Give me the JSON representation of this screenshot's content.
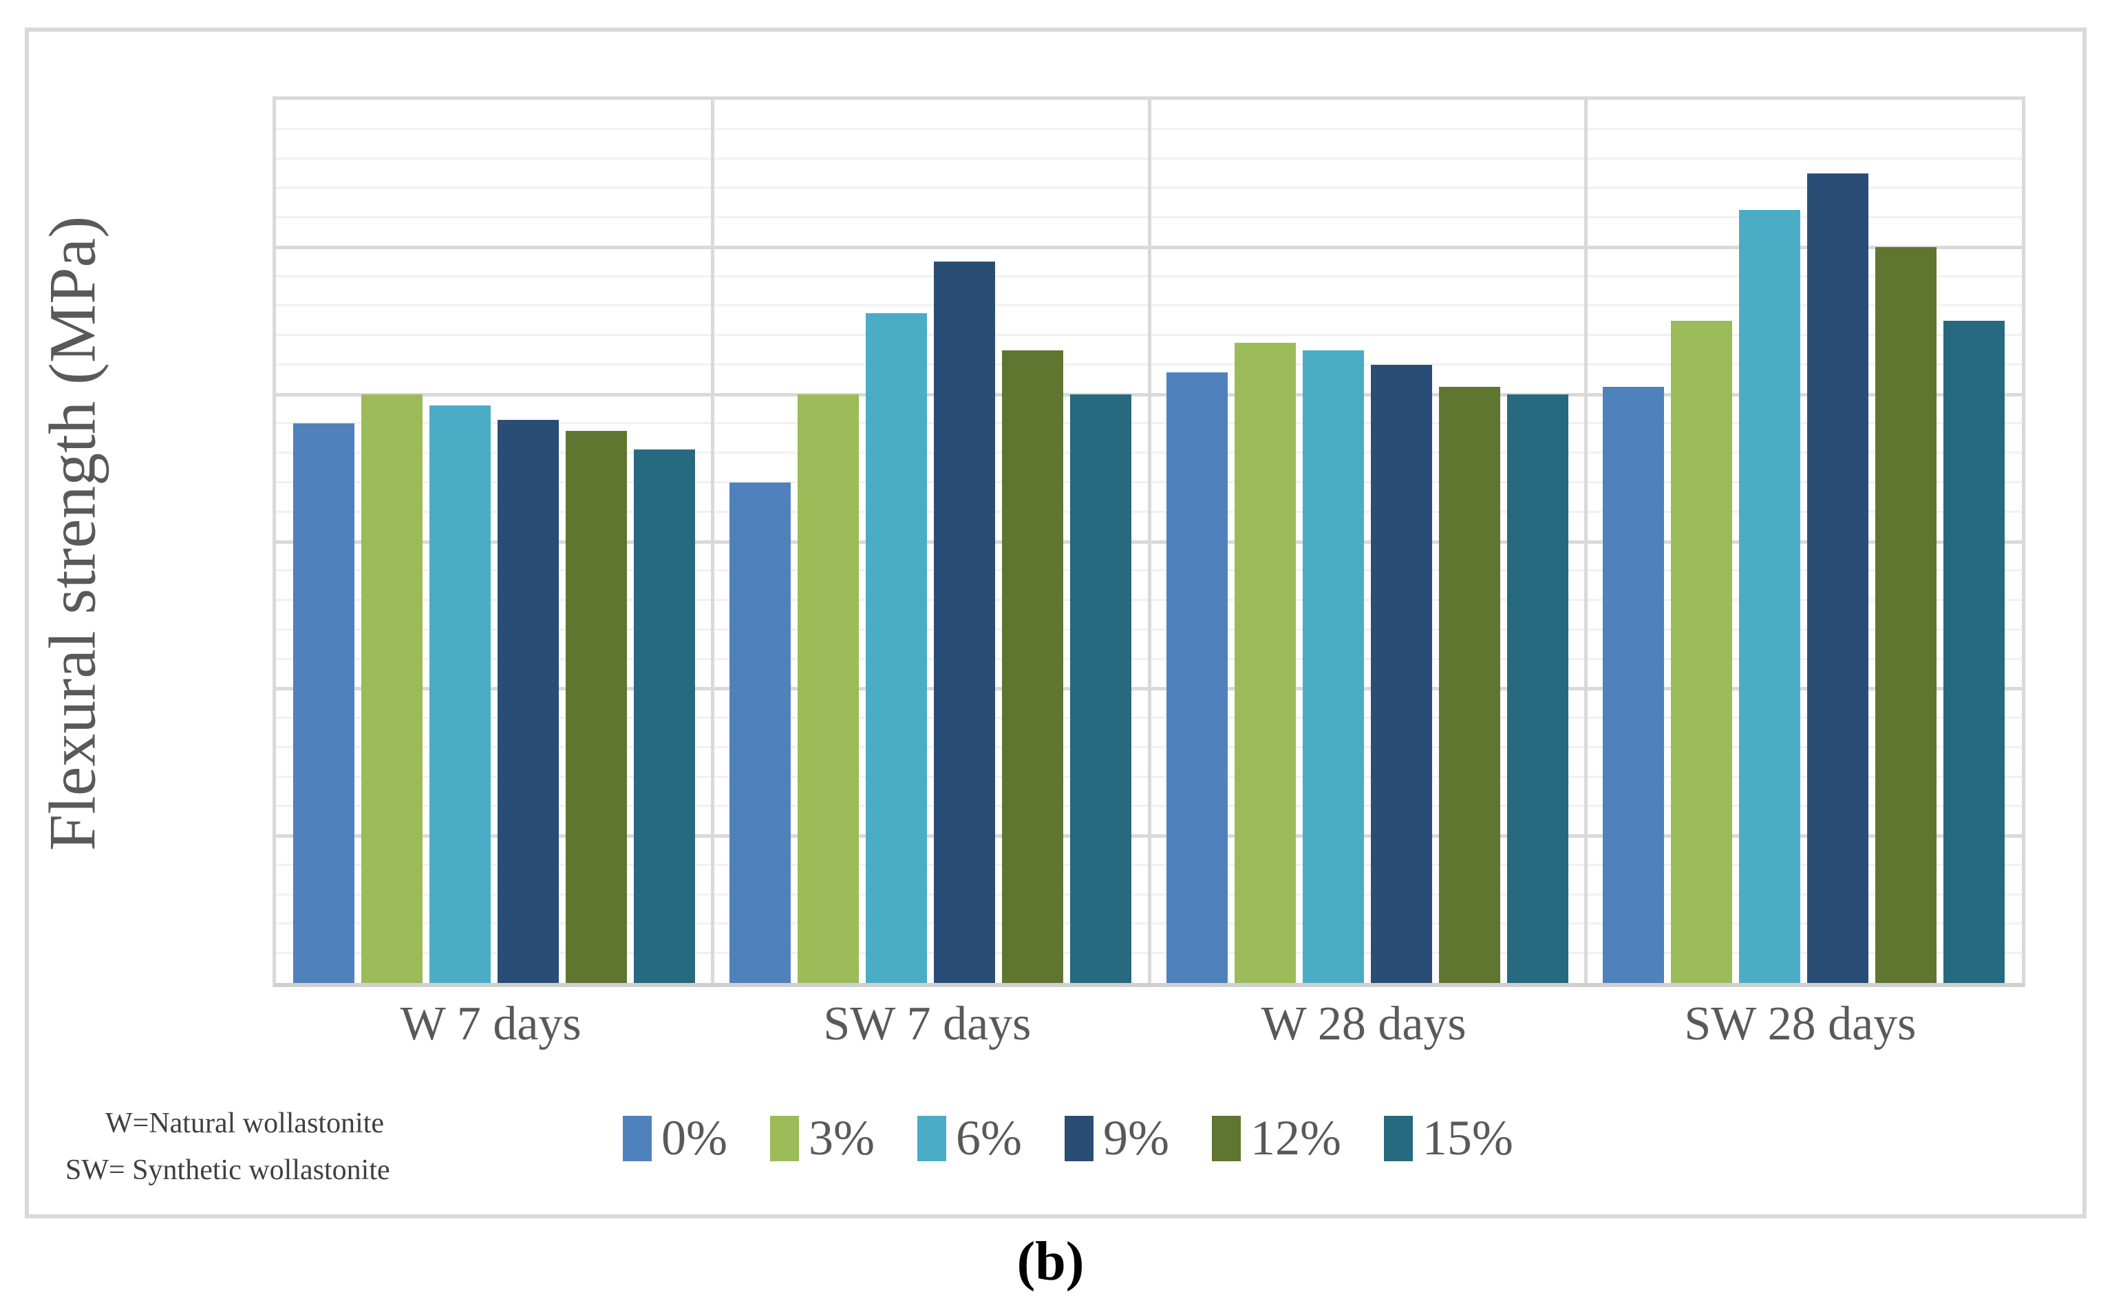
{
  "figure": {
    "caption": "(b)",
    "footnote_line1": "W=Natural wollastonite",
    "footnote_line2": "SW= Synthetic wollastonite"
  },
  "chart_data": {
    "type": "bar",
    "title": "",
    "xlabel": "",
    "ylabel": "Flexural strength (MPa)",
    "ylim": [
      0,
      12
    ],
    "yticks": [
      0,
      2,
      4,
      6,
      8,
      10,
      12
    ],
    "major_grid_step": 2,
    "minor_grid_step": 0.4,
    "grid": "horizontal major and minor gridlines, vertical category dividers",
    "legend_position": "bottom",
    "categories": [
      "W 7 days",
      "SW 7 days",
      "W 28 days",
      "SW 28 days"
    ],
    "series": [
      {
        "name": "0%",
        "color": "#4F81BD",
        "values": [
          7.6,
          6.8,
          8.3,
          8.1
        ]
      },
      {
        "name": "3%",
        "color": "#9BBB59",
        "values": [
          8.0,
          8.0,
          8.7,
          9.0
        ]
      },
      {
        "name": "6%",
        "color": "#4BACC6",
        "values": [
          7.85,
          9.1,
          8.6,
          10.5
        ]
      },
      {
        "name": "9%",
        "color": "#2A4D75",
        "values": [
          7.65,
          9.8,
          8.4,
          11.0
        ]
      },
      {
        "name": "12%",
        "color": "#5F7530",
        "values": [
          7.5,
          8.6,
          8.1,
          10.0
        ]
      },
      {
        "name": "15%",
        "color": "#27697E",
        "values": [
          7.25,
          8.0,
          8.0,
          9.0
        ]
      }
    ],
    "colors": {
      "axis_text": "#595959",
      "major_gridline": "#d9d9d9",
      "minor_gridline": "#f1f1f1",
      "frame_border": "#d9d9d9",
      "background": "#ffffff"
    }
  }
}
